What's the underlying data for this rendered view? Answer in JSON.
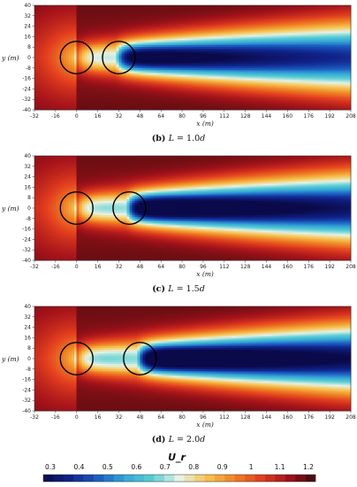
{
  "chart_data": {
    "type": "heatmap",
    "colorbar": {
      "title": "U_r",
      "ticks": [
        "0.3",
        "0.4",
        "0.5",
        "0.6",
        "0.7",
        "0.8",
        "0.9",
        "1",
        "1.1",
        "1.2"
      ],
      "range": [
        0.3,
        1.2
      ],
      "colors": [
        "#0a0a4a",
        "#10238a",
        "#1b5bc0",
        "#35a6d8",
        "#58cfd2",
        "#e6f2e6",
        "#f7c450",
        "#ef8324",
        "#e23d1e",
        "#a3121a",
        "#3a0a0c"
      ]
    },
    "panels": [
      {
        "id": "b",
        "letter": "(b)",
        "caption_prefix": "L",
        "caption_value": "= 1.0",
        "caption_unit": "d",
        "turbines_x": [
          0,
          32
        ],
        "wake_deficit": 0.55
      },
      {
        "id": "c",
        "letter": "(c)",
        "caption_prefix": "L",
        "caption_value": "= 1.5",
        "caption_unit": "d",
        "turbines_x": [
          0,
          40
        ],
        "wake_deficit": 0.6
      },
      {
        "id": "d",
        "letter": "(d)",
        "caption_prefix": "L",
        "caption_value": "= 2.0",
        "caption_unit": "d",
        "turbines_x": [
          0,
          48
        ],
        "wake_deficit": 0.62
      }
    ],
    "xlabel": "x (m)",
    "ylabel": "y (m)",
    "xticks": [
      -32,
      -16,
      0,
      16,
      32,
      48,
      64,
      80,
      96,
      112,
      128,
      144,
      160,
      176,
      192,
      208
    ],
    "yticks": [
      40,
      32,
      24,
      16,
      8,
      0,
      -8,
      -16,
      -24,
      -32,
      -40
    ],
    "xlim": [
      -32,
      208
    ],
    "ylim": [
      -40,
      40
    ],
    "turbine_diameter": 16
  }
}
